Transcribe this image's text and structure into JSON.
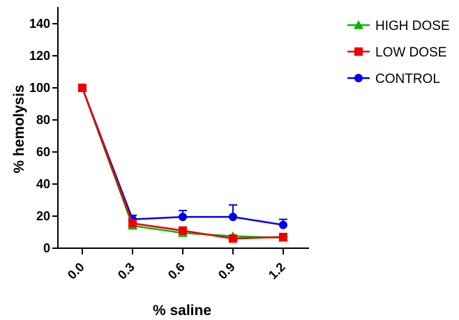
{
  "chart_data": {
    "type": "line",
    "xlabel": "% saline",
    "ylabel": "% hemolysis",
    "x": [
      "0.0",
      "0.3",
      "0.6",
      "0.9",
      "1.2"
    ],
    "ylim": [
      0,
      150
    ],
    "yticks": [
      "0",
      "20",
      "40",
      "60",
      "80",
      "100",
      "120",
      "140"
    ],
    "grid": false,
    "legend_position": "top-right",
    "series": [
      {
        "name": "HIGH DOSE",
        "color": "#00b800",
        "marker": "triangle",
        "values": [
          100,
          14,
          9.5,
          7.5,
          6.5
        ],
        "errors": [
          0,
          1,
          1,
          0.5,
          0.5
        ]
      },
      {
        "name": "LOW DOSE",
        "color": "#ee0000",
        "marker": "square",
        "values": [
          100,
          15.5,
          11,
          6,
          7
        ],
        "errors": [
          0,
          1,
          1,
          0.5,
          0.5
        ]
      },
      {
        "name": "CONTROL",
        "color": "#0000ee",
        "marker": "circle",
        "values": [
          100,
          18,
          19.5,
          19.5,
          14.5
        ],
        "errors": [
          0,
          2.5,
          4,
          7.5,
          3.5
        ]
      }
    ]
  }
}
